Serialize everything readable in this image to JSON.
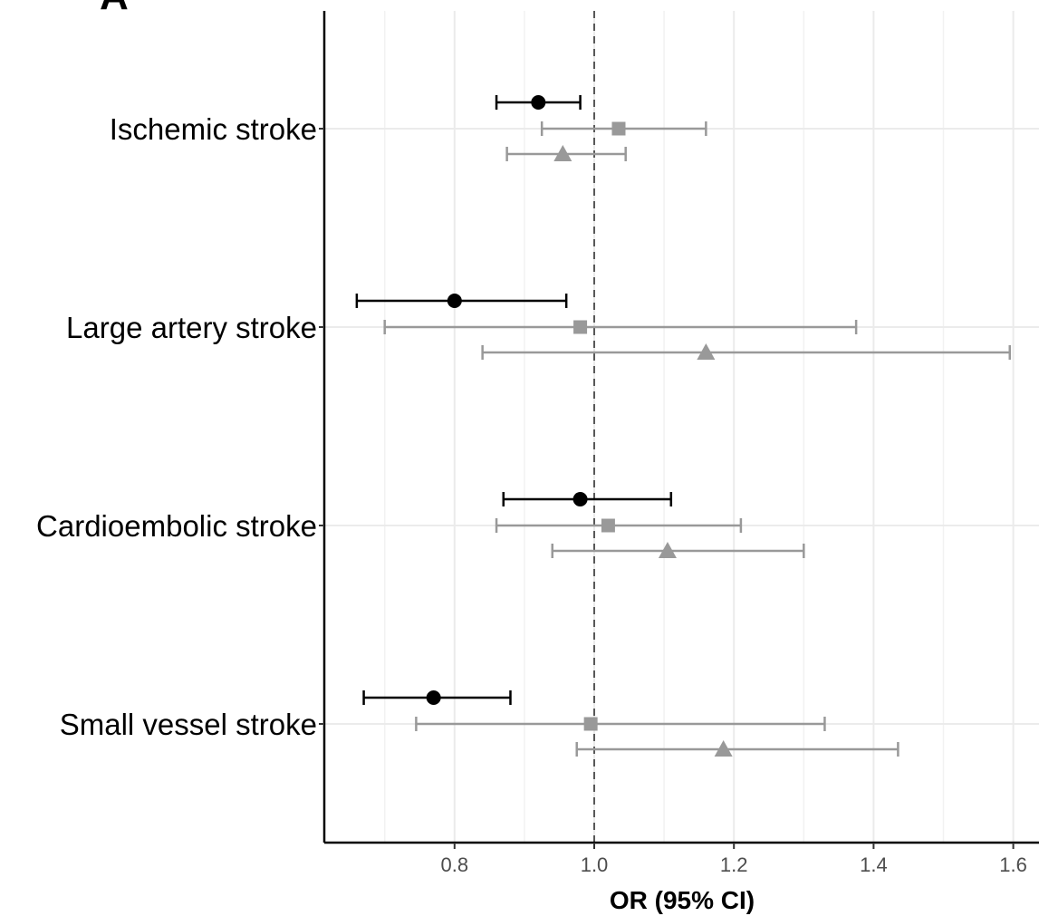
{
  "panel_label": "A",
  "chart_data": {
    "type": "forest",
    "xlabel": "OR (95% CI)",
    "ylabel": "",
    "xlim": [
      0.62,
      1.64
    ],
    "x_ticks": [
      0.8,
      1.0,
      1.2,
      1.4,
      1.6
    ],
    "x_tick_labels": [
      "0.8",
      "1.0",
      "1.2",
      "1.4",
      "1.6"
    ],
    "reference_line": 1.0,
    "grid": true,
    "categories": [
      "Ischemic stroke",
      "Large artery stroke",
      "Cardioembolic stroke",
      "Small vessel stroke"
    ],
    "series": [
      {
        "marker": "circle",
        "color": "#000000",
        "points": [
          {
            "or": 0.92,
            "lo": 0.86,
            "hi": 0.98
          },
          {
            "or": 0.8,
            "lo": 0.66,
            "hi": 0.96
          },
          {
            "or": 0.98,
            "lo": 0.87,
            "hi": 1.11
          },
          {
            "or": 0.77,
            "lo": 0.67,
            "hi": 0.88
          }
        ]
      },
      {
        "marker": "square",
        "color": "#999999",
        "points": [
          {
            "or": 1.035,
            "lo": 0.925,
            "hi": 1.16
          },
          {
            "or": 0.98,
            "lo": 0.7,
            "hi": 1.375
          },
          {
            "or": 1.02,
            "lo": 0.86,
            "hi": 1.21
          },
          {
            "or": 0.995,
            "lo": 0.745,
            "hi": 1.33
          }
        ]
      },
      {
        "marker": "triangle",
        "color": "#999999",
        "points": [
          {
            "or": 0.955,
            "lo": 0.875,
            "hi": 1.045
          },
          {
            "or": 1.16,
            "lo": 0.84,
            "hi": 1.595
          },
          {
            "or": 1.105,
            "lo": 0.94,
            "hi": 1.3
          },
          {
            "or": 1.185,
            "lo": 0.975,
            "hi": 1.435
          }
        ]
      }
    ]
  }
}
